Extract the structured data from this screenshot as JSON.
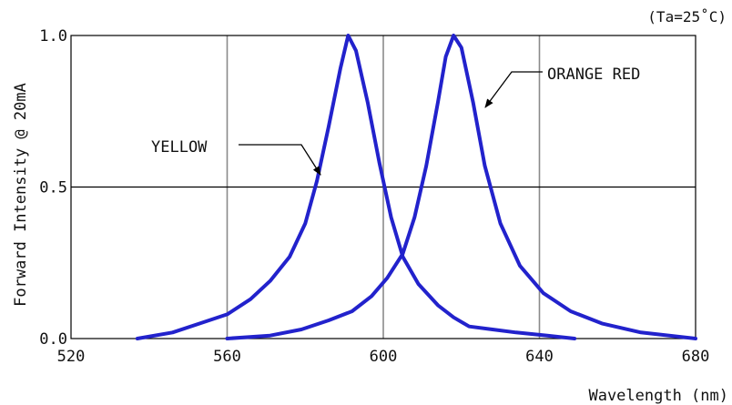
{
  "chart_data": {
    "type": "line",
    "xlabel": "Wavelength (nm)",
    "ylabel": "Forward Intensity @ 20mA",
    "condition": "(Ta=25˚C)",
    "xlim": [
      520,
      680
    ],
    "ylim": [
      0,
      1.0
    ],
    "x_ticks": [
      520,
      560,
      600,
      640,
      680
    ],
    "x_tick_labels": [
      "520",
      "560",
      "600",
      "640",
      "680"
    ],
    "y_ticks": [
      0,
      0.5,
      1.0
    ],
    "y_tick_labels": [
      "0.0",
      "0.5",
      "1.0"
    ],
    "grid": {
      "vertical_at": [
        560,
        600,
        640
      ],
      "horizontal_at": [
        0.5
      ]
    },
    "line_color": "#2222cc",
    "series": [
      {
        "name": "YELLOW",
        "x": [
          537,
          546,
          553,
          560,
          566,
          571,
          576,
          580,
          583,
          586,
          589,
          591,
          593,
          596,
          599,
          602,
          605,
          609,
          614,
          618,
          622,
          628,
          634,
          642,
          649
        ],
        "y": [
          0.0,
          0.02,
          0.05,
          0.08,
          0.13,
          0.19,
          0.27,
          0.38,
          0.52,
          0.7,
          0.89,
          1.0,
          0.95,
          0.78,
          0.58,
          0.4,
          0.27,
          0.18,
          0.11,
          0.07,
          0.04,
          0.03,
          0.02,
          0.01,
          0.0
        ]
      },
      {
        "name": "ORANGE RED",
        "x": [
          560,
          571,
          579,
          586,
          592,
          597,
          601,
          605,
          608,
          611,
          614,
          616,
          618,
          620,
          623,
          626,
          630,
          635,
          641,
          648,
          656,
          666,
          680
        ],
        "y": [
          0.0,
          0.01,
          0.03,
          0.06,
          0.09,
          0.14,
          0.2,
          0.28,
          0.4,
          0.57,
          0.78,
          0.93,
          1.0,
          0.96,
          0.78,
          0.57,
          0.38,
          0.24,
          0.15,
          0.09,
          0.05,
          0.02,
          0.0
        ]
      }
    ],
    "annotations": [
      {
        "text": "YELLOW",
        "points_to_series": "YELLOW"
      },
      {
        "text": "ORANGE RED",
        "points_to_series": "ORANGE RED"
      }
    ]
  }
}
